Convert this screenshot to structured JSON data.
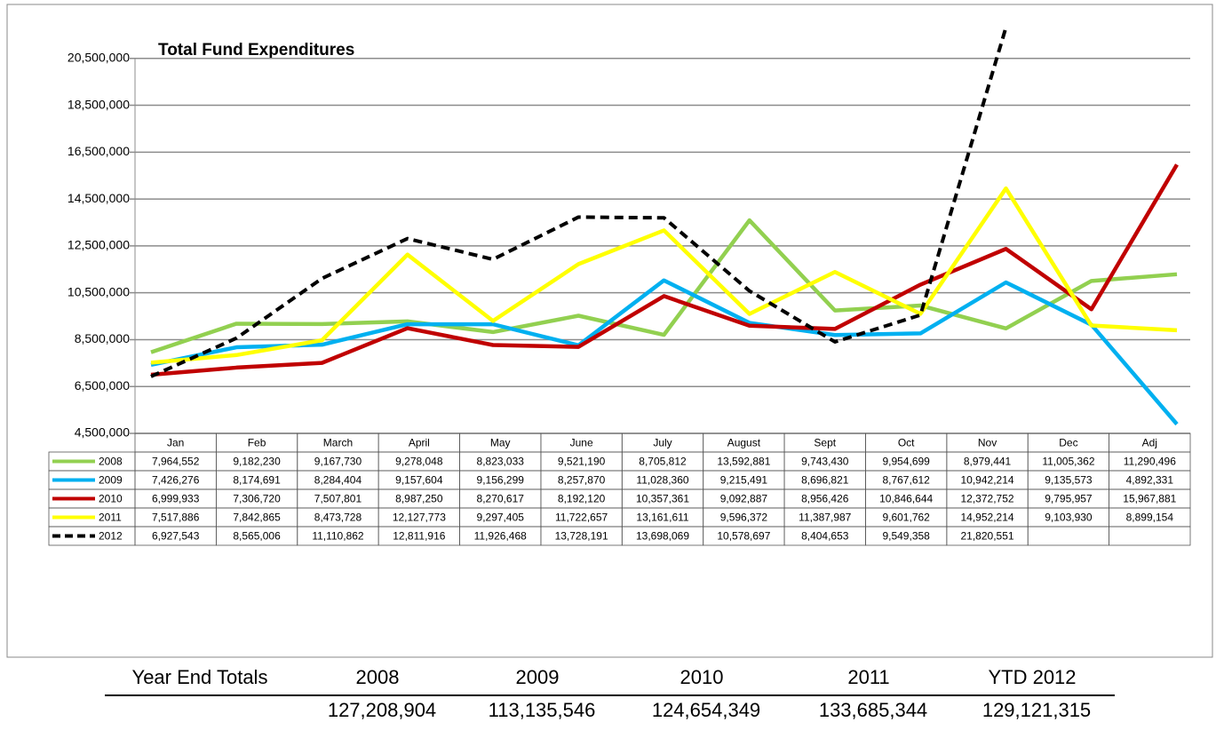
{
  "chart_data": {
    "type": "line",
    "title": "Total Fund Expenditures",
    "categories": [
      "Jan",
      "Feb",
      "March",
      "April",
      "May",
      "June",
      "July",
      "August",
      "Sept",
      "Oct",
      "Nov",
      "Dec",
      "Adj"
    ],
    "ylim": [
      4500000,
      22500000
    ],
    "yticks": [
      {
        "value": 4500000,
        "label": "4,500,000"
      },
      {
        "value": 6500000,
        "label": "6,500,000"
      },
      {
        "value": 8500000,
        "label": "8,500,000"
      },
      {
        "value": 10500000,
        "label": "10,500,000"
      },
      {
        "value": 12500000,
        "label": "12,500,000"
      },
      {
        "value": 14500000,
        "label": "14,500,000"
      },
      {
        "value": 16500000,
        "label": "16,500,000"
      },
      {
        "value": 18500000,
        "label": "18,500,000"
      },
      {
        "value": 20500000,
        "label": "20,500,000"
      }
    ],
    "grid": true,
    "series": [
      {
        "name": "2008",
        "color": "#92d050",
        "dashed": false,
        "values": [
          7964552,
          9182230,
          9167730,
          9278048,
          8823033,
          9521190,
          8705812,
          13592881,
          9743430,
          9954699,
          8979441,
          11005362,
          11290496
        ],
        "value_labels": [
          "7,964,552",
          "9,182,230",
          "9,167,730",
          "9,278,048",
          "8,823,033",
          "9,521,190",
          "8,705,812",
          "13,592,881",
          "9,743,430",
          "9,954,699",
          "8,979,441",
          "11,005,362",
          "11,290,496"
        ]
      },
      {
        "name": "2009",
        "color": "#00b0f0",
        "dashed": false,
        "values": [
          7426276,
          8174691,
          8284404,
          9157604,
          9156299,
          8257870,
          11028360,
          9215491,
          8696821,
          8767612,
          10942214,
          9135573,
          4892331
        ],
        "value_labels": [
          "7,426,276",
          "8,174,691",
          "8,284,404",
          "9,157,604",
          "9,156,299",
          "8,257,870",
          "11,028,360",
          "9,215,491",
          "8,696,821",
          "8,767,612",
          "10,942,214",
          "9,135,573",
          "4,892,331"
        ]
      },
      {
        "name": "2010",
        "color": "#c00000",
        "dashed": false,
        "values": [
          6999933,
          7306720,
          7507801,
          8987250,
          8270617,
          8192120,
          10357361,
          9092887,
          8956426,
          10846644,
          12372752,
          9795957,
          15967881
        ],
        "value_labels": [
          "6,999,933",
          "7,306,720",
          "7,507,801",
          "8,987,250",
          "8,270,617",
          "8,192,120",
          "10,357,361",
          "9,092,887",
          "8,956,426",
          "10,846,644",
          "12,372,752",
          "9,795,957",
          "15,967,881"
        ]
      },
      {
        "name": "2011",
        "color": "#ffff00",
        "dashed": false,
        "values": [
          7517886,
          7842865,
          8473728,
          12127773,
          9297405,
          11722657,
          13161611,
          9596372,
          11387987,
          9601762,
          14952214,
          9103930,
          8899154
        ],
        "value_labels": [
          "7,517,886",
          "7,842,865",
          "8,473,728",
          "12,127,773",
          "9,297,405",
          "11,722,657",
          "13,161,611",
          "9,596,372",
          "11,387,987",
          "9,601,762",
          "14,952,214",
          "9,103,930",
          "8,899,154"
        ]
      },
      {
        "name": "2012",
        "color": "#000000",
        "dashed": true,
        "values": [
          6927543,
          8565006,
          11110862,
          12811916,
          11926468,
          13728191,
          13698069,
          10578697,
          8404653,
          9549358,
          21820551,
          null,
          null
        ],
        "value_labels": [
          "6,927,543",
          "8,565,006",
          "11,110,862",
          "12,811,916",
          "11,926,468",
          "13,728,191",
          "13,698,069",
          "10,578,697",
          "8,404,653",
          "9,549,358",
          "21,820,551",
          null,
          null
        ]
      }
    ]
  },
  "year_end_totals": {
    "label": "Year End Totals",
    "headers": [
      "2008",
      "2009",
      "2010",
      "2011",
      "YTD 2012"
    ],
    "values": [
      "127,208,904",
      "113,135,546",
      "124,654,349",
      "133,685,344",
      "129,121,315"
    ]
  }
}
